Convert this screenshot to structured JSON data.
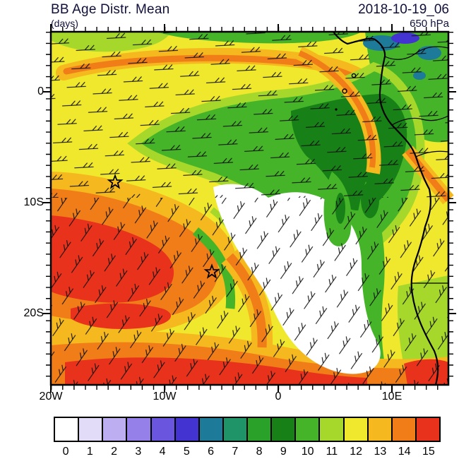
{
  "header": {
    "title": "BB Age Distr. Mean",
    "units": "(days)",
    "datetime": "2018-10-19_06",
    "level": "650 hPa"
  },
  "axes": {
    "x_ticks": [
      "20W",
      "10W",
      "0",
      "10E"
    ],
    "y_ticks": [
      "0",
      "10S",
      "20S"
    ]
  },
  "colorbar": {
    "labels": [
      "0",
      "1",
      "2",
      "3",
      "4",
      "5",
      "6",
      "7",
      "8",
      "9",
      "10",
      "11",
      "12",
      "13",
      "14",
      "15"
    ],
    "colors": [
      "#ffffff",
      "#e3dcf8",
      "#bcaef0",
      "#9480e8",
      "#6a55de",
      "#4334d2",
      "#1d7a99",
      "#1f9468",
      "#2aa22a",
      "#178117",
      "#45b428",
      "#a6d82c",
      "#f0e82c",
      "#f5b81e",
      "#f07d18",
      "#e8321c"
    ]
  },
  "chart_data": {
    "type": "heatmap",
    "title": "BB Age Distr. Mean",
    "units": "days",
    "datetime": "2018-10-19_06",
    "level": "650 hPa",
    "projection": "lat-lon map of the southeast Atlantic and western Africa",
    "lon_range": [
      "20W",
      "15E"
    ],
    "lat_range": [
      "5N",
      "26S"
    ],
    "x_ticks": [
      "20W",
      "10W",
      "0",
      "10E"
    ],
    "y_ticks": [
      "0",
      "10S",
      "20S"
    ],
    "grid": "off",
    "legend_position": "horizontal colorbar below map",
    "colorbar_labels": [
      0,
      1,
      2,
      3,
      4,
      5,
      6,
      7,
      8,
      9,
      10,
      11,
      12,
      13,
      14,
      15
    ],
    "colorbar_colors": [
      "#ffffff",
      "#e3dcf8",
      "#bcaef0",
      "#9480e8",
      "#6a55de",
      "#4334d2",
      "#1d7a99",
      "#1f9468",
      "#2aa22a",
      "#178117",
      "#45b428",
      "#a6d82c",
      "#f0e82c",
      "#f5b81e",
      "#f07d18",
      "#e8321c"
    ],
    "overlay": "wind barbs across the full domain",
    "coastline": "African coast from the Gulf of Guinea south along Gabon, Congo, Angola and Namibia with country borders",
    "markers": [
      {
        "symbol": "open-star",
        "lon": "14W",
        "lat": "8S"
      },
      {
        "symbol": "open-star",
        "lon": "6W",
        "lat": "16S"
      }
    ],
    "regions": [
      {
        "area": "background over most of the domain",
        "value_days": "11-12 (yellow)"
      },
      {
        "area": "broad plume arcing from mid-ocean to the Gabon/Congo coast",
        "value_days": "8-10 (green, dark-green core)"
      },
      {
        "area": "south-central ocean blob and tongue to the Angola/Namibia coast",
        "value_days": "0 (white)"
      },
      {
        "area": "large western blob near 10-20S and band along the southern edge",
        "value_days": "13-15 (orange to red)"
      },
      {
        "area": "narrow streak across the top near 3N",
        "value_days": "13-14 (orange)"
      },
      {
        "area": "spots near the Gulf of Guinea coast (top right)",
        "value_days": "4-7 (blue and teal)"
      },
      {
        "area": "strip hugging the Angola coast",
        "value_days": "9-10 (green)"
      }
    ]
  }
}
